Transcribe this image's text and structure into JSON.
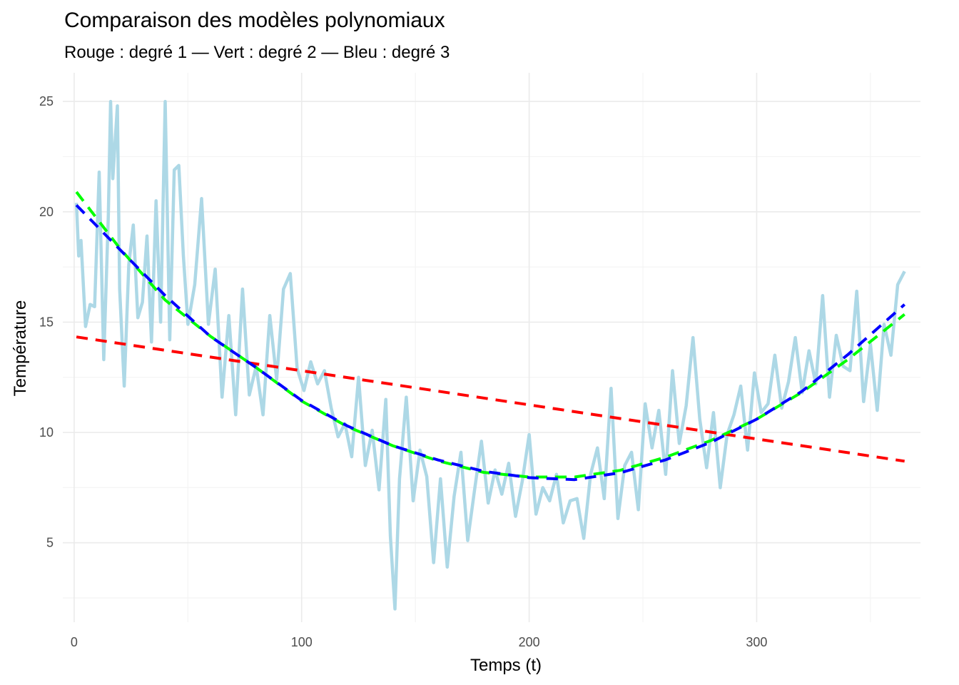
{
  "chart_data": {
    "type": "line",
    "title": "Comparaison des modèles polynomiaux",
    "subtitle": "Rouge : degré 1 — Vert : degré 2 — Bleu : degré 3",
    "xlabel": "Temps (t)",
    "ylabel": "Température",
    "xlim": [
      -5,
      372
    ],
    "ylim": [
      1.4,
      26.3
    ],
    "x_ticks": [
      0,
      100,
      200,
      300
    ],
    "y_ticks": [
      5,
      10,
      15,
      20,
      25
    ],
    "grid": true,
    "legend": "none",
    "colors": {
      "observed": "#add8e6",
      "degree1": "#ff0000",
      "degree2": "#00ff00",
      "degree3": "#0000ff",
      "grid_major": "#ebebeb",
      "grid_minor": "#f4f4f4"
    },
    "series": [
      {
        "style": "solid",
        "color": "#add8e6",
        "x": [
          1,
          2,
          3,
          5,
          7,
          9,
          11,
          13,
          15,
          16,
          17,
          19,
          20,
          22,
          24,
          26,
          28,
          30,
          32,
          34,
          36,
          38,
          40,
          42,
          44,
          46,
          48,
          50,
          53,
          56,
          59,
          62,
          65,
          68,
          71,
          74,
          77,
          80,
          83,
          86,
          89,
          92,
          95,
          98,
          101,
          104,
          107,
          110,
          113,
          116,
          119,
          122,
          125,
          128,
          131,
          134,
          137,
          139,
          141,
          143,
          146,
          149,
          152,
          155,
          158,
          161,
          164,
          167,
          170,
          173,
          176,
          179,
          182,
          185,
          188,
          191,
          194,
          197,
          200,
          203,
          206,
          209,
          212,
          215,
          218,
          221,
          224,
          227,
          230,
          233,
          236,
          239,
          242,
          245,
          248,
          251,
          254,
          257,
          260,
          263,
          266,
          269,
          272,
          275,
          278,
          281,
          284,
          287,
          290,
          293,
          296,
          299,
          302,
          305,
          308,
          311,
          314,
          317,
          320,
          323,
          326,
          329,
          332,
          335,
          338,
          341,
          344,
          347,
          350,
          353,
          356,
          359,
          362,
          365
        ],
        "y": [
          20.4,
          18.0,
          18.7,
          14.8,
          15.8,
          15.7,
          21.8,
          13.3,
          19.8,
          25.0,
          21.5,
          24.8,
          16.5,
          12.1,
          17.6,
          19.4,
          15.2,
          15.9,
          18.9,
          14.1,
          20.5,
          15.0,
          25.0,
          14.2,
          21.9,
          22.1,
          18.0,
          14.9,
          16.7,
          20.6,
          14.9,
          17.4,
          11.6,
          15.3,
          10.8,
          16.5,
          11.7,
          13.0,
          10.8,
          15.3,
          12.4,
          16.5,
          17.2,
          12.9,
          11.9,
          13.2,
          12.2,
          12.8,
          11.1,
          9.8,
          10.4,
          8.9,
          12.5,
          8.5,
          10.1,
          7.4,
          11.5,
          5.3,
          2.0,
          7.9,
          11.6,
          6.9,
          9.2,
          8.0,
          4.1,
          7.9,
          3.9,
          7.1,
          9.1,
          5.1,
          7.4,
          9.6,
          6.8,
          8.3,
          7.2,
          8.6,
          6.2,
          7.8,
          9.9,
          6.3,
          7.5,
          6.9,
          8.1,
          5.9,
          6.9,
          7.0,
          5.2,
          8.1,
          9.3,
          7.0,
          12.0,
          6.1,
          8.5,
          9.1,
          6.5,
          11.3,
          9.3,
          11.0,
          8.1,
          12.8,
          9.5,
          11.2,
          14.3,
          10.6,
          8.4,
          10.9,
          7.5,
          9.9,
          10.8,
          12.1,
          9.2,
          12.7,
          10.9,
          11.3,
          13.5,
          11.1,
          12.3,
          14.3,
          11.8,
          13.7,
          12.2,
          16.2,
          11.6,
          14.4,
          13.0,
          12.8,
          16.4,
          11.4,
          14.0,
          11.0,
          14.9,
          13.5,
          16.7,
          17.3
        ]
      },
      {
        "style": "dashed",
        "color": "#ff0000",
        "x": [
          1,
          365
        ],
        "y": [
          14.33,
          8.7
        ]
      },
      {
        "style": "dashed",
        "color": "#00ff00",
        "x": [
          1,
          20,
          40,
          60,
          80,
          100,
          120,
          140,
          160,
          180,
          200,
          220,
          240,
          260,
          280,
          300,
          320,
          340,
          365
        ],
        "y": [
          20.9,
          18.35,
          16.0,
          14.35,
          12.94,
          11.42,
          10.27,
          9.4,
          8.71,
          8.19,
          7.98,
          7.98,
          8.28,
          8.88,
          9.64,
          10.6,
          11.83,
          13.3,
          15.35
        ]
      },
      {
        "style": "dashed",
        "color": "#0000ff",
        "x": [
          1,
          20,
          40,
          60,
          80,
          100,
          120,
          140,
          160,
          180,
          200,
          220,
          240,
          260,
          280,
          300,
          320,
          340,
          365
        ],
        "y": [
          20.3,
          18.3,
          16.2,
          14.34,
          12.94,
          11.45,
          10.3,
          9.4,
          8.75,
          8.24,
          7.95,
          7.86,
          8.17,
          8.76,
          9.56,
          10.6,
          11.87,
          13.52,
          15.8
        ]
      }
    ]
  }
}
